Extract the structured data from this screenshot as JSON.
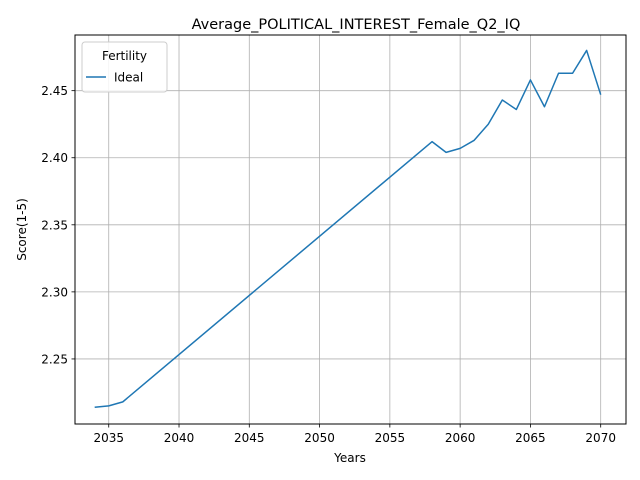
{
  "chart_data": {
    "type": "line",
    "title": "Average_POLITICAL_INTEREST_Female_Q2_IQ",
    "xlabel": "Years",
    "ylabel": "Score(1-5)",
    "xlim": [
      2032.6,
      2071.8
    ],
    "ylim": [
      2.2015,
      2.4915
    ],
    "xticks": [
      2035,
      2040,
      2045,
      2050,
      2055,
      2060,
      2065,
      2070
    ],
    "xtick_labels": [
      "2035",
      "2040",
      "2045",
      "2050",
      "2055",
      "2060",
      "2065",
      "2070"
    ],
    "yticks": [
      2.25,
      2.3,
      2.35,
      2.4,
      2.45
    ],
    "ytick_labels": [
      "2.25",
      "2.30",
      "2.35",
      "2.40",
      "2.45"
    ],
    "grid": true,
    "legend": {
      "title": "Fertility",
      "placement": "top-left"
    },
    "series": [
      {
        "name": "Ideal",
        "color": "#1f77b4",
        "x": [
          2034,
          2035,
          2036,
          2058,
          2059,
          2060,
          2061,
          2062,
          2063,
          2064,
          2065,
          2066,
          2067,
          2068,
          2069,
          2070
        ],
        "y": [
          2.214,
          2.215,
          2.218,
          2.412,
          2.404,
          2.407,
          2.413,
          2.425,
          2.443,
          2.436,
          2.458,
          2.438,
          2.463,
          2.463,
          2.48,
          2.447
        ]
      }
    ]
  }
}
